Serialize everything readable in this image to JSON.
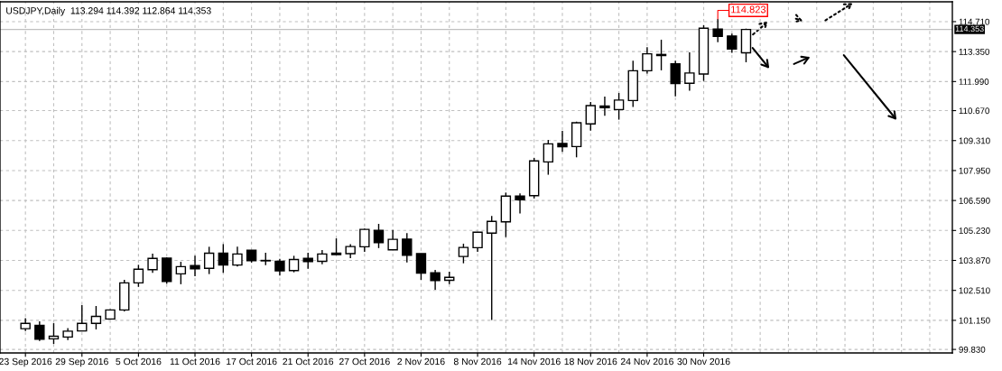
{
  "chart_data": {
    "type": "candlestick",
    "title": "USDJPY,Daily  113.294 114.392 112.864 114.353",
    "categories": [
      "23 Sep 2016",
      null,
      null,
      null,
      "29 Sep 2016",
      null,
      null,
      null,
      "5 Oct 2016",
      null,
      null,
      null,
      "11 Oct 2016",
      null,
      null,
      null,
      "17 Oct 2016",
      null,
      null,
      null,
      "21 Oct 2016",
      null,
      null,
      null,
      "27 Oct 2016",
      null,
      null,
      null,
      "2 Nov 2016",
      null,
      null,
      null,
      "8 Nov 2016",
      null,
      null,
      null,
      "14 Nov 2016",
      null,
      null,
      null,
      "18 Nov 2016",
      null,
      null,
      null,
      "24 Nov 2016",
      null,
      null,
      null,
      "30 Nov 2016",
      null,
      null,
      null,
      null,
      null,
      null,
      null,
      null,
      null,
      null,
      null,
      null,
      null,
      null,
      null,
      null,
      null
    ],
    "ohlc": [
      [
        100.77,
        101.25,
        100.66,
        101.01
      ],
      [
        100.92,
        101.1,
        100.21,
        100.29
      ],
      [
        100.31,
        101.02,
        100.08,
        100.43
      ],
      [
        100.39,
        100.8,
        100.25,
        100.66
      ],
      [
        100.67,
        101.84,
        100.66,
        101.01
      ],
      [
        101.01,
        101.8,
        100.74,
        101.33
      ],
      [
        101.21,
        101.65,
        101.21,
        101.62
      ],
      [
        101.62,
        102.99,
        101.56,
        102.85
      ],
      [
        102.85,
        103.67,
        102.67,
        103.47
      ],
      [
        103.45,
        104.18,
        103.31,
        103.96
      ],
      [
        103.97,
        104.0,
        102.82,
        102.92
      ],
      [
        103.26,
        103.81,
        102.79,
        103.59
      ],
      [
        103.64,
        104.09,
        103.15,
        103.49
      ],
      [
        103.51,
        104.49,
        103.25,
        104.2
      ],
      [
        104.2,
        104.61,
        103.31,
        103.66
      ],
      [
        103.66,
        104.49,
        103.59,
        104.16
      ],
      [
        104.33,
        104.33,
        103.77,
        103.86
      ],
      [
        103.87,
        104.22,
        103.66,
        103.85
      ],
      [
        103.83,
        103.94,
        103.18,
        103.4
      ],
      [
        103.41,
        104.08,
        103.33,
        103.91
      ],
      [
        103.96,
        104.22,
        103.49,
        103.82
      ],
      [
        103.83,
        104.34,
        103.7,
        104.16
      ],
      [
        104.2,
        104.87,
        104.13,
        104.13
      ],
      [
        104.18,
        104.61,
        103.97,
        104.5
      ],
      [
        104.49,
        105.31,
        104.26,
        105.28
      ],
      [
        105.24,
        105.53,
        104.43,
        104.68
      ],
      [
        104.35,
        105.25,
        104.35,
        104.83
      ],
      [
        104.84,
        105.11,
        103.78,
        104.1
      ],
      [
        104.18,
        104.18,
        102.99,
        103.29
      ],
      [
        103.31,
        103.44,
        102.54,
        102.96
      ],
      [
        102.97,
        103.36,
        102.79,
        103.1
      ],
      [
        104.05,
        104.63,
        103.74,
        104.46
      ],
      [
        104.45,
        105.15,
        104.26,
        105.15
      ],
      [
        105.11,
        105.89,
        101.17,
        105.64
      ],
      [
        105.62,
        106.95,
        104.93,
        106.79
      ],
      [
        106.79,
        106.91,
        106.0,
        106.62
      ],
      [
        106.81,
        108.52,
        106.68,
        108.39
      ],
      [
        108.34,
        109.34,
        107.76,
        109.16
      ],
      [
        109.18,
        109.75,
        108.8,
        109.03
      ],
      [
        109.04,
        110.17,
        108.55,
        110.12
      ],
      [
        110.07,
        111.06,
        109.76,
        110.9
      ],
      [
        110.88,
        111.31,
        110.44,
        110.8
      ],
      [
        110.72,
        111.47,
        110.26,
        111.15
      ],
      [
        111.13,
        112.94,
        110.84,
        112.48
      ],
      [
        112.48,
        113.55,
        112.35,
        113.25
      ],
      [
        113.22,
        113.89,
        112.5,
        113.17
      ],
      [
        112.79,
        112.94,
        111.32,
        111.9
      ],
      [
        111.91,
        113.32,
        111.57,
        112.38
      ],
      [
        112.33,
        114.55,
        112.02,
        114.41
      ],
      [
        114.37,
        114.823,
        113.78,
        114.04
      ],
      [
        114.06,
        114.17,
        113.29,
        113.47
      ],
      [
        113.294,
        114.392,
        112.864,
        114.353
      ],
      null,
      null,
      null,
      null,
      null,
      null,
      null,
      null,
      null,
      null,
      null,
      null,
      null,
      null
    ],
    "color": "#000000",
    "ylim": [
      99.67,
      115.61
    ],
    "yticks": [
      {
        "value": 99.83,
        "label": "99.830"
      },
      {
        "value": 101.15,
        "label": "101.150"
      },
      {
        "value": 102.51,
        "label": "102.510"
      },
      {
        "value": 103.87,
        "label": "103.870"
      },
      {
        "value": 105.23,
        "label": "105.230"
      },
      {
        "value": 106.59,
        "label": "106.590"
      },
      {
        "value": 107.95,
        "label": "107.950"
      },
      {
        "value": 109.31,
        "label": "109.310"
      },
      {
        "value": 110.67,
        "label": "110.670"
      },
      {
        "value": 111.99,
        "label": "111.990"
      },
      {
        "value": 113.35,
        "label": "113.350"
      },
      {
        "value": 114.71,
        "label": "114.710"
      }
    ],
    "ref_lines": [
      {
        "axis": "y",
        "value": 114.353,
        "label": "114.353",
        "color": "#c0c0c0"
      }
    ],
    "annotations": [
      "114.823"
    ],
    "grid": true
  }
}
